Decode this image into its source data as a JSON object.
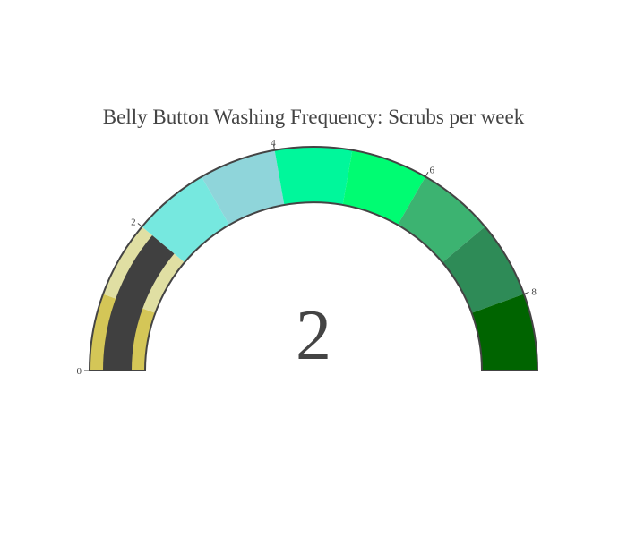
{
  "chart_data": {
    "type": "gauge",
    "title": "Belly Button Washing Frequency: Scrubs per week",
    "value": 2,
    "value_label": "2",
    "range": [
      0,
      9
    ],
    "ticks": [
      {
        "value": 0,
        "label": "0"
      },
      {
        "value": 2,
        "label": "2"
      },
      {
        "value": 4,
        "label": "4"
      },
      {
        "value": 6,
        "label": "6"
      },
      {
        "value": 8,
        "label": "8"
      }
    ],
    "steps": [
      {
        "range": [
          0,
          1
        ],
        "color": "#d4c657"
      },
      {
        "range": [
          1,
          2
        ],
        "color": "#e0dfa3"
      },
      {
        "range": [
          2,
          3
        ],
        "color": "#76e8df"
      },
      {
        "range": [
          3,
          4
        ],
        "color": "#8fd5da"
      },
      {
        "range": [
          4,
          5
        ],
        "color": "#00f79b"
      },
      {
        "range": [
          5,
          6
        ],
        "color": "#00fc72"
      },
      {
        "range": [
          6,
          7
        ],
        "color": "#3cb371"
      },
      {
        "range": [
          7,
          8
        ],
        "color": "#2e8b57"
      },
      {
        "range": [
          8,
          9
        ],
        "color": "#006400"
      }
    ],
    "bar_color": "#404040"
  }
}
